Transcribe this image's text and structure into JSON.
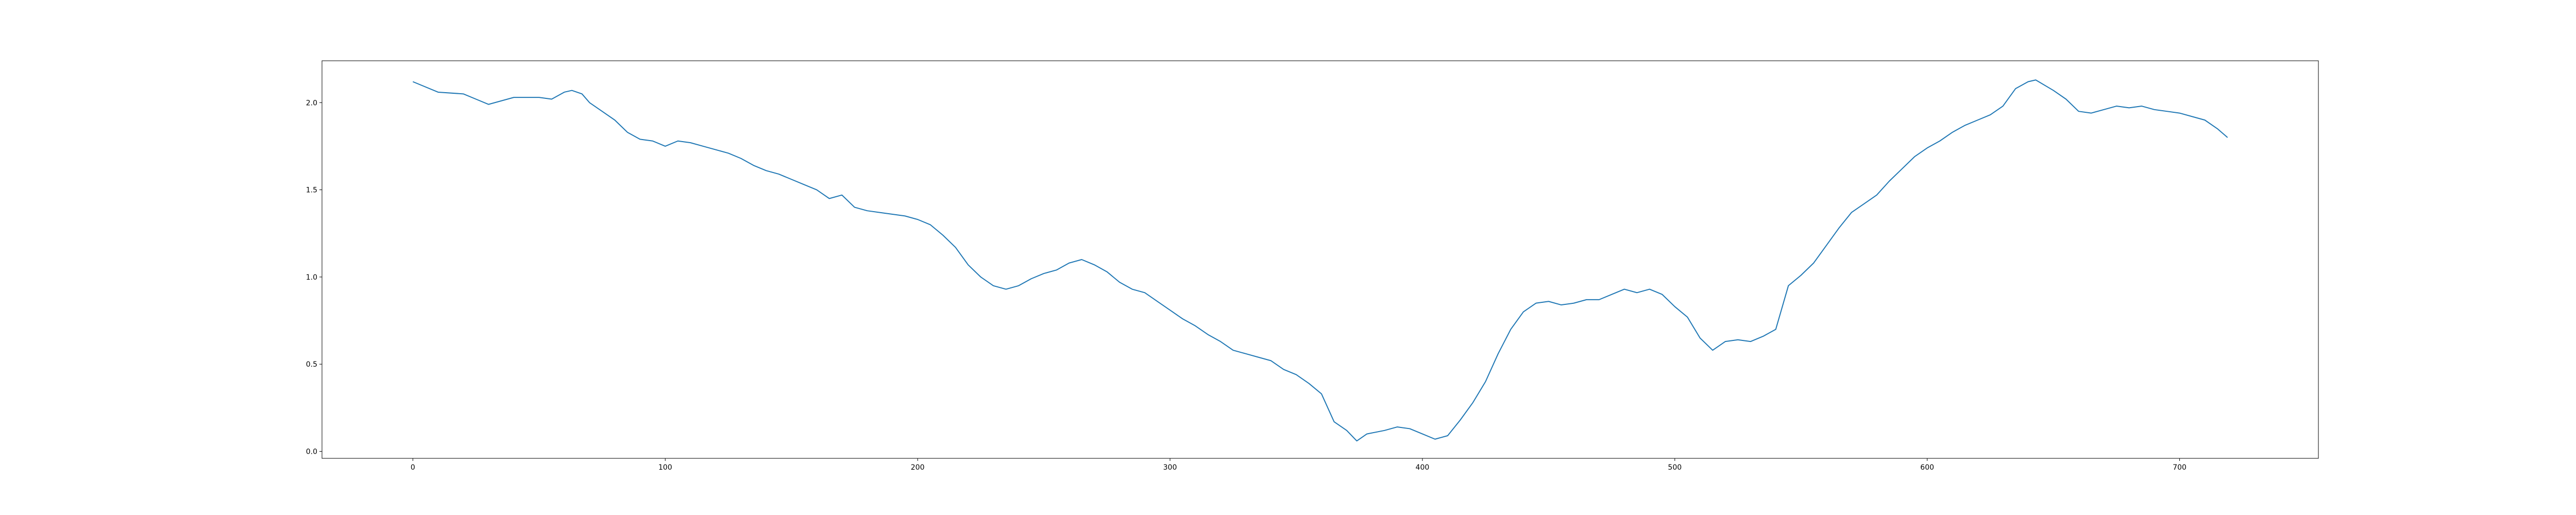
{
  "chart_data": {
    "type": "line",
    "x": [
      0,
      10,
      20,
      25,
      30,
      35,
      40,
      50,
      55,
      60,
      63,
      67,
      70,
      75,
      80,
      85,
      90,
      95,
      100,
      105,
      110,
      115,
      120,
      125,
      130,
      135,
      140,
      145,
      150,
      155,
      160,
      165,
      170,
      175,
      180,
      185,
      190,
      195,
      200,
      205,
      210,
      215,
      220,
      225,
      230,
      235,
      240,
      245,
      250,
      255,
      260,
      265,
      270,
      275,
      280,
      285,
      290,
      295,
      300,
      305,
      310,
      315,
      320,
      325,
      330,
      335,
      340,
      345,
      350,
      355,
      360,
      365,
      370,
      374,
      378,
      385,
      390,
      395,
      400,
      405,
      410,
      415,
      420,
      425,
      430,
      435,
      440,
      445,
      450,
      455,
      460,
      465,
      470,
      475,
      480,
      485,
      490,
      495,
      500,
      505,
      510,
      515,
      520,
      525,
      530,
      535,
      540,
      545,
      550,
      555,
      560,
      565,
      570,
      575,
      580,
      585,
      590,
      595,
      600,
      605,
      610,
      615,
      620,
      625,
      630,
      635,
      640,
      643,
      650,
      655,
      660,
      665,
      670,
      675,
      680,
      685,
      690,
      695,
      700,
      705,
      710,
      715,
      719
    ],
    "series": [
      {
        "color": "#1f77b4",
        "values": [
          2.12,
          2.06,
          2.05,
          2.02,
          1.99,
          2.01,
          2.03,
          2.03,
          2.02,
          2.06,
          2.07,
          2.05,
          2.0,
          1.95,
          1.9,
          1.83,
          1.79,
          1.78,
          1.75,
          1.78,
          1.77,
          1.75,
          1.73,
          1.71,
          1.68,
          1.64,
          1.61,
          1.59,
          1.56,
          1.53,
          1.5,
          1.45,
          1.47,
          1.4,
          1.38,
          1.37,
          1.36,
          1.35,
          1.33,
          1.3,
          1.24,
          1.17,
          1.07,
          1.0,
          0.95,
          0.93,
          0.95,
          0.99,
          1.02,
          1.04,
          1.08,
          1.1,
          1.07,
          1.03,
          0.97,
          0.93,
          0.91,
          0.86,
          0.81,
          0.76,
          0.72,
          0.67,
          0.63,
          0.58,
          0.56,
          0.54,
          0.52,
          0.47,
          0.44,
          0.39,
          0.33,
          0.17,
          0.12,
          0.06,
          0.1,
          0.12,
          0.14,
          0.13,
          0.1,
          0.07,
          0.09,
          0.18,
          0.28,
          0.4,
          0.56,
          0.7,
          0.8,
          0.85,
          0.86,
          0.84,
          0.85,
          0.87,
          0.87,
          0.9,
          0.93,
          0.91,
          0.93,
          0.9,
          0.83,
          0.77,
          0.65,
          0.58,
          0.63,
          0.64,
          0.63,
          0.66,
          0.7,
          0.95,
          1.01,
          1.08,
          1.18,
          1.28,
          1.37,
          1.42,
          1.47,
          1.55,
          1.62,
          1.69,
          1.74,
          1.78,
          1.83,
          1.87,
          1.9,
          1.93,
          1.98,
          2.08,
          2.12,
          2.13,
          2.07,
          2.02,
          1.95,
          1.94,
          1.96,
          1.98,
          1.97,
          1.98,
          1.96,
          1.95,
          1.94,
          1.92,
          1.9,
          1.85,
          1.8
        ]
      }
    ],
    "xlim": [
      -36,
      755
    ],
    "ylim": [
      -0.04,
      2.24
    ],
    "xticks": [
      0,
      100,
      200,
      300,
      400,
      500,
      600,
      700
    ],
    "yticks": [
      {
        "value": 0,
        "label": "0.0"
      },
      0.5,
      {
        "value": 1,
        "label": "1.0"
      },
      1.5,
      {
        "value": 2,
        "label": "2.0"
      }
    ]
  }
}
